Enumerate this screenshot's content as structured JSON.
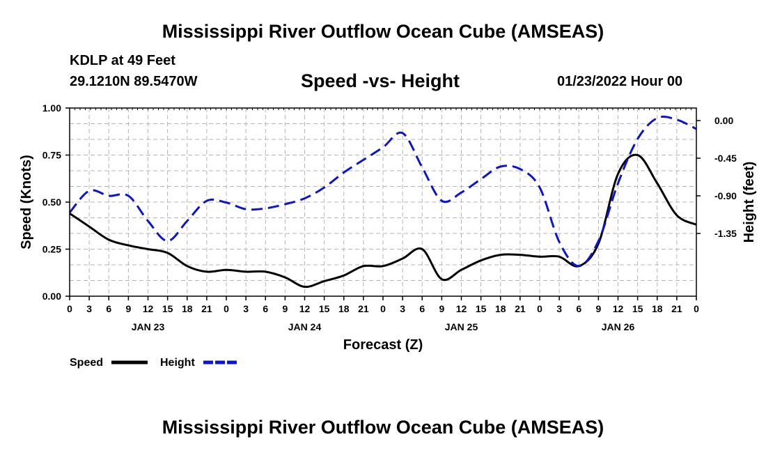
{
  "header": {
    "title": "Mississippi River Outflow Ocean Cube (AMSEAS)",
    "station": "KDLP at 49 Feet",
    "coords": "29.1210N  89.5470W",
    "subtitle": "Speed -vs- Height",
    "datetime": "01/23/2022 Hour 00"
  },
  "footer": {
    "title": "Mississippi River Outflow Ocean Cube (AMSEAS)"
  },
  "chart_data": {
    "type": "line",
    "title": "Speed -vs- Height",
    "xlabel": "Forecast (Z)",
    "ylabel": "Speed (Knots)",
    "y2label": "Height (feet)",
    "xlim": [
      0,
      96
    ],
    "ylim": [
      0,
      1.0
    ],
    "y2lim": [
      -2.1,
      0.15
    ],
    "grid": true,
    "x_tick_labels": [
      "0",
      "3",
      "6",
      "9",
      "12",
      "15",
      "18",
      "21",
      "0",
      "3",
      "6",
      "9",
      "12",
      "15",
      "18",
      "21",
      "0",
      "3",
      "6",
      "9",
      "12",
      "15",
      "18",
      "21",
      "0",
      "3",
      "6",
      "9",
      "12",
      "15",
      "18",
      "21",
      "0"
    ],
    "date_labels": [
      {
        "hour": 12,
        "label": "JAN 23"
      },
      {
        "hour": 36,
        "label": "JAN 24"
      },
      {
        "hour": 60,
        "label": "JAN 25"
      },
      {
        "hour": 84,
        "label": "JAN 26"
      }
    ],
    "y_tick_labels": [
      "0.00",
      "0.25",
      "0.50",
      "0.75",
      "1.00"
    ],
    "y2_tick_labels": [
      "0.00",
      "-0.45",
      "-0.90",
      "-1.35"
    ],
    "series": [
      {
        "name": "Speed",
        "axis": "left",
        "color": "#000000",
        "dash": "solid",
        "x": [
          0,
          3,
          6,
          9,
          12,
          15,
          18,
          21,
          24,
          27,
          30,
          33,
          36,
          39,
          42,
          45,
          48,
          51,
          54,
          57,
          60,
          63,
          66,
          69,
          72,
          75,
          78,
          81,
          84,
          87,
          90,
          93,
          96
        ],
        "values": [
          0.44,
          0.37,
          0.3,
          0.27,
          0.25,
          0.23,
          0.16,
          0.13,
          0.14,
          0.13,
          0.13,
          0.1,
          0.05,
          0.08,
          0.11,
          0.16,
          0.16,
          0.2,
          0.25,
          0.09,
          0.14,
          0.19,
          0.22,
          0.22,
          0.21,
          0.21,
          0.16,
          0.28,
          0.65,
          0.75,
          0.6,
          0.43,
          0.38
        ]
      },
      {
        "name": "Height",
        "axis": "right",
        "color": "#0a14d2",
        "dash": "dashed",
        "x": [
          0,
          3,
          6,
          9,
          12,
          15,
          18,
          21,
          24,
          27,
          30,
          33,
          36,
          39,
          42,
          45,
          48,
          51,
          54,
          57,
          60,
          63,
          66,
          69,
          72,
          75,
          78,
          81,
          84,
          87,
          90,
          93,
          96
        ],
        "values": [
          -1.1,
          -0.84,
          -0.9,
          -0.9,
          -1.2,
          -1.44,
          -1.2,
          -0.96,
          -0.98,
          -1.06,
          -1.05,
          -1.0,
          -0.93,
          -0.8,
          -0.62,
          -0.47,
          -0.32,
          -0.15,
          -0.56,
          -0.96,
          -0.86,
          -0.7,
          -0.55,
          -0.58,
          -0.8,
          -1.45,
          -1.74,
          -1.44,
          -0.75,
          -0.22,
          0.03,
          0.01,
          -0.1
        ]
      }
    ],
    "legend": [
      {
        "label": "Speed",
        "color": "#000000",
        "dash": "solid"
      },
      {
        "label": "Height",
        "color": "#0a14d2",
        "dash": "dashed"
      }
    ]
  }
}
